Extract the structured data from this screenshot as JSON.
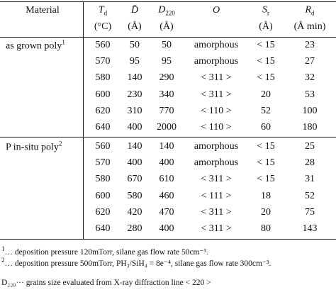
{
  "table": {
    "header": [
      {
        "symbol": "Material"
      },
      {
        "symbol": "T",
        "sub": "d",
        "unit": "(°C)"
      },
      {
        "symbol": "D̄",
        "unit": "(Å)"
      },
      {
        "symbol": "D",
        "sub": "220",
        "unit": "(Å)"
      },
      {
        "symbol": "O"
      },
      {
        "symbol": "S",
        "sub": "r",
        "unit": "(Å)"
      },
      {
        "symbol": "R",
        "sub": "d",
        "unit": "(Å min)"
      }
    ],
    "groups": [
      {
        "label": "as grown poly",
        "note": "1",
        "rows": [
          [
            560,
            50,
            50,
            "amorphous",
            "< 15",
            23
          ],
          [
            570,
            95,
            95,
            "amorphous",
            "< 15",
            27
          ],
          [
            580,
            140,
            290,
            "< 311 >",
            "< 15",
            32
          ],
          [
            600,
            230,
            340,
            "< 311 >",
            20,
            53
          ],
          [
            620,
            310,
            770,
            "< 110 >",
            52,
            100
          ],
          [
            640,
            400,
            2000,
            "< 110 >",
            60,
            180
          ]
        ]
      },
      {
        "label": "P in-situ poly",
        "note": "2",
        "rows": [
          [
            560,
            140,
            140,
            "amorphous",
            "< 15",
            25
          ],
          [
            570,
            400,
            400,
            "amorphous",
            "< 15",
            28
          ],
          [
            580,
            670,
            610,
            "< 311 >",
            "< 15",
            31
          ],
          [
            600,
            580,
            460,
            "< 111 >",
            18,
            52
          ],
          [
            620,
            420,
            470,
            "< 311 >",
            20,
            75
          ],
          [
            640,
            280,
            400,
            "< 311 >",
            80,
            143
          ]
        ]
      }
    ]
  },
  "footnotes": [
    {
      "marker": "1",
      "text": "… deposition pressure 120mTorr, silane gas flow rate 50cm⁻³."
    },
    {
      "marker": "2",
      "text": "… deposition pressure 500mTorr, PH₃/SiH₄ = 8e⁻⁴, silane gas flow rate 300cm⁻³."
    },
    {
      "marker": "D₂₂₀",
      "text": "··· grains size evaluated from X-ray diffraction line < 220 >"
    }
  ]
}
